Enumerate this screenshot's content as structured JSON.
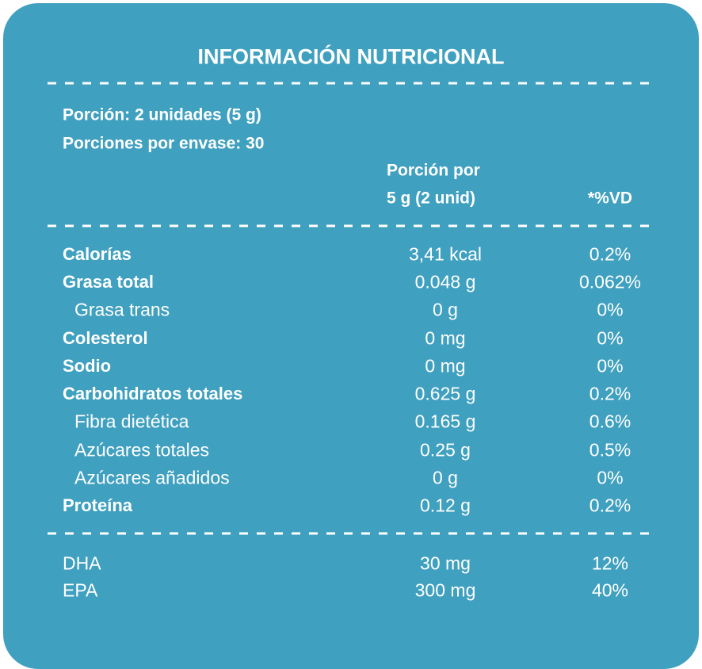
{
  "header": {
    "title": "INFORMACIÓN NUTRICIONAL"
  },
  "serving": {
    "size": "Porción: 2 unidades (5 g)",
    "per_container": "Porciones por envase: 30"
  },
  "columns": {
    "amount": [
      "Porción por",
      "5 g (2 unid)"
    ],
    "daily_value": "*%VD"
  },
  "table": {
    "rows": [
      [
        "Calorías",
        "3,41 kcal",
        "0.2%"
      ],
      [
        "Grasa total",
        "0.048 g",
        "0.062%"
      ],
      [
        "Grasa trans",
        "0 g",
        "0%"
      ],
      [
        "Colesterol",
        "0 mg",
        "0%"
      ],
      [
        "Sodio",
        "0 mg",
        "0%"
      ],
      [
        "Carbohidratos totales",
        "0.625 g",
        "0.2%"
      ],
      [
        "Fibra dietética",
        "0.165 g",
        "0.6%"
      ],
      [
        "Azúcares totales",
        "0.25 g",
        "0.5%"
      ],
      [
        "Azúcares añadidos",
        "0 g",
        "0%"
      ],
      [
        "Proteína",
        "0.12 g",
        "0.2%"
      ]
    ]
  },
  "extras": {
    "rows": [
      [
        "DHA",
        "30 mg",
        "12%"
      ],
      [
        "EPA",
        "300 mg",
        "40%"
      ]
    ]
  }
}
